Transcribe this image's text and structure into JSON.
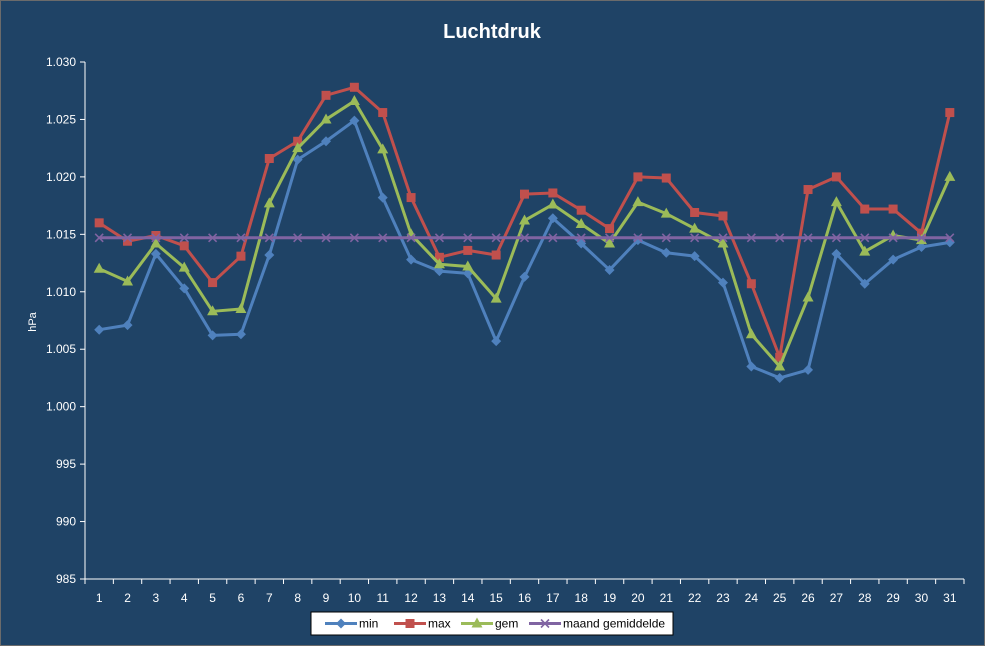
{
  "chart_data": {
    "type": "line",
    "title": "Luchtdruk",
    "ylabel": "hPa",
    "xlabel": "",
    "ylim": [
      985,
      1030
    ],
    "yticks": [
      985,
      990,
      995,
      1000,
      1005,
      1010,
      1015,
      1020,
      1025,
      1030
    ],
    "ytick_labels": [
      "985",
      "990",
      "995",
      "1.000",
      "1.005",
      "1.010",
      "1.015",
      "1.020",
      "1.025",
      "1.030"
    ],
    "categories": [
      "1",
      "2",
      "3",
      "4",
      "5",
      "6",
      "7",
      "8",
      "9",
      "10",
      "11",
      "12",
      "13",
      "14",
      "15",
      "16",
      "17",
      "18",
      "19",
      "20",
      "21",
      "22",
      "23",
      "24",
      "25",
      "26",
      "27",
      "28",
      "29",
      "30",
      "31"
    ],
    "grid": false,
    "legend_position": "bottom",
    "series": [
      {
        "name": "min",
        "color": "#4f81bd",
        "marker": "diamond",
        "values": [
          1006.7,
          1007.1,
          1013.3,
          1010.3,
          1006.2,
          1006.3,
          1013.2,
          1021.5,
          1023.1,
          1024.9,
          1018.2,
          1012.8,
          1011.8,
          1011.6,
          1005.7,
          1011.3,
          1016.4,
          1014.2,
          1011.9,
          1014.5,
          1013.4,
          1013.1,
          1010.8,
          1003.5,
          1002.5,
          1003.2,
          1013.3,
          1010.7,
          1012.8,
          1013.9,
          1014.3
        ]
      },
      {
        "name": "max",
        "color": "#c0504d",
        "marker": "square",
        "values": [
          1016.0,
          1014.4,
          1014.9,
          1014.0,
          1010.8,
          1013.1,
          1021.6,
          1023.1,
          1027.1,
          1027.8,
          1025.6,
          1018.2,
          1013.0,
          1013.6,
          1013.2,
          1018.5,
          1018.6,
          1017.1,
          1015.5,
          1020.0,
          1019.9,
          1016.9,
          1016.6,
          1010.7,
          1004.3,
          1018.9,
          1020.0,
          1017.2,
          1017.2,
          1015.1,
          1025.6
        ]
      },
      {
        "name": "gem",
        "color": "#9bbb59",
        "marker": "triangle",
        "values": [
          1012.0,
          1010.9,
          1014.2,
          1012.1,
          1008.3,
          1008.5,
          1017.7,
          1022.5,
          1025.0,
          1026.6,
          1022.4,
          1015.0,
          1012.4,
          1012.2,
          1009.4,
          1016.2,
          1017.6,
          1015.9,
          1014.2,
          1017.8,
          1016.8,
          1015.5,
          1014.2,
          1006.3,
          1003.5,
          1009.5,
          1017.8,
          1013.5,
          1014.9,
          1014.5,
          1020.0
        ]
      },
      {
        "name": "maand gemiddelde",
        "color": "#8064a2",
        "marker": "x",
        "values": [
          1014.7,
          1014.7,
          1014.7,
          1014.7,
          1014.7,
          1014.7,
          1014.7,
          1014.7,
          1014.7,
          1014.7,
          1014.7,
          1014.7,
          1014.7,
          1014.7,
          1014.7,
          1014.7,
          1014.7,
          1014.7,
          1014.7,
          1014.7,
          1014.7,
          1014.7,
          1014.7,
          1014.7,
          1014.7,
          1014.7,
          1014.7,
          1014.7,
          1014.7,
          1014.7,
          1014.7
        ]
      }
    ]
  },
  "colors": {
    "background": "#1f4366",
    "axis": "#ffffff",
    "legend_bg": "#ffffff"
  }
}
